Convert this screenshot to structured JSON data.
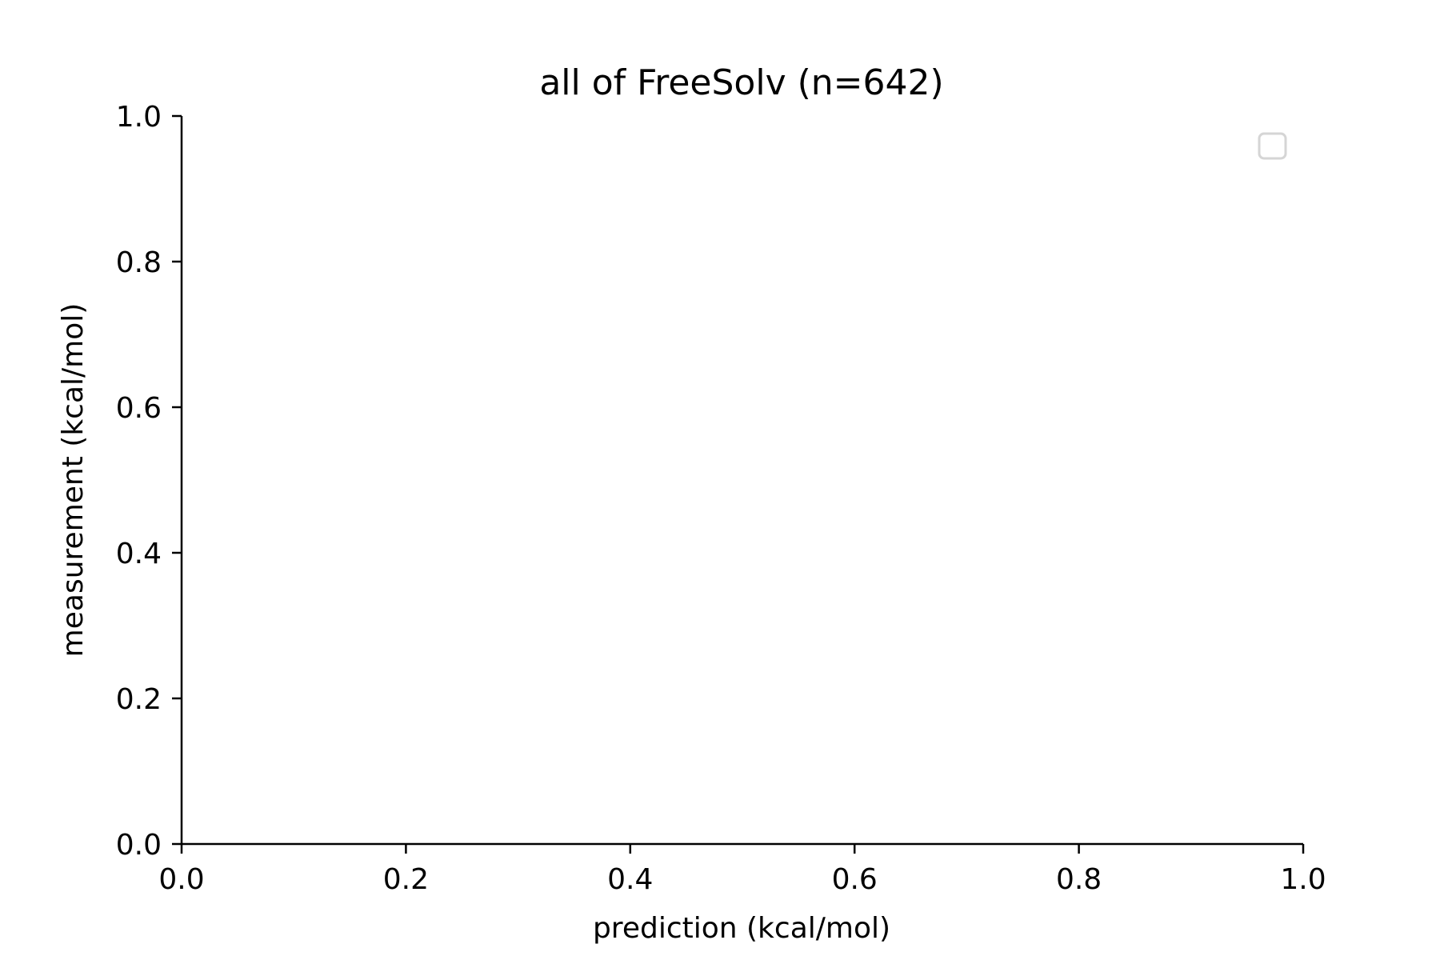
{
  "chart_data": {
    "type": "scatter",
    "title": "all of FreeSolv (n=642)",
    "xlabel": "prediction (kcal/mol)",
    "ylabel": "measurement (kcal/mol)",
    "xlim": [
      0.0,
      1.0
    ],
    "ylim": [
      0.0,
      1.0
    ],
    "xticks": [
      0.0,
      0.2,
      0.4,
      0.6,
      0.8,
      1.0
    ],
    "yticks": [
      0.0,
      0.2,
      0.4,
      0.6,
      0.8,
      1.0
    ],
    "xtick_labels": [
      "0.0",
      "0.2",
      "0.4",
      "0.6",
      "0.8",
      "1.0"
    ],
    "ytick_labels": [
      "0.0",
      "0.2",
      "0.4",
      "0.6",
      "0.8",
      "1.0"
    ],
    "series": [],
    "grid": false,
    "legend": {
      "placement": "top-right",
      "entries": []
    },
    "colors": {
      "axis": "#000000",
      "legend_border": "#d5d5d5"
    }
  }
}
